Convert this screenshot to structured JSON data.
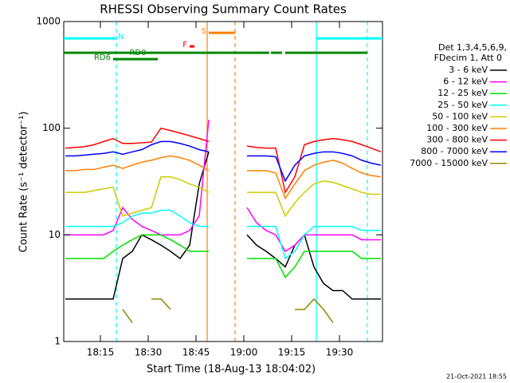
{
  "chart_data": {
    "type": "line",
    "title": "RHESSI Observing Summary Count Rates",
    "xlabel": "Start Time (18-Aug-13 18:04:02)",
    "ylabel": "Count Rate (s⁻¹ detector⁻¹)",
    "footer": "21-Oct-2021 18:55",
    "log_y": true,
    "xlim": [
      "18:03:30",
      "19:43:30"
    ],
    "xticks": [
      "18:15",
      "18:30",
      "18:45",
      "19:00",
      "19:15",
      "19:30"
    ],
    "ylim": [
      1,
      1000
    ],
    "yticks": [
      1,
      10,
      100,
      1000
    ],
    "legend_title": [
      "Det 1,3,4,5,6,9,",
      "FDecim 1, Att 0"
    ],
    "x": [
      "18:04",
      "18:07",
      "18:10",
      "18:13",
      "18:16",
      "18:19",
      "18:22",
      "18:25",
      "18:28",
      "18:31",
      "18:34",
      "18:37",
      "18:40",
      "18:43",
      "18:46",
      "18:49",
      "18:52",
      "18:55",
      "18:58",
      "19:01",
      "19:04",
      "19:07",
      "19:10",
      "19:13",
      "19:16",
      "19:19",
      "19:22",
      "19:25",
      "19:28",
      "19:31",
      "19:34",
      "19:37",
      "19:40",
      "19:43"
    ],
    "series": [
      {
        "name": "3 - 6 keV",
        "color": "#000000",
        "values": [
          2.5,
          2.5,
          2.5,
          2.5,
          2.5,
          2.5,
          6,
          7,
          10,
          9,
          8,
          7,
          6,
          8,
          30,
          60,
          null,
          null,
          null,
          10,
          8,
          7,
          6,
          5,
          8,
          10,
          5,
          3.5,
          3,
          3,
          2.5,
          2.5,
          2.5,
          2.5
        ]
      },
      {
        "name": "6 - 12 keV",
        "color": "#ff00ff",
        "values": [
          10,
          10,
          10,
          10,
          10,
          11,
          18,
          14,
          12,
          11,
          10,
          10,
          10,
          11,
          15,
          120,
          null,
          null,
          null,
          18,
          13,
          11,
          10,
          7,
          8,
          10,
          10,
          10,
          10,
          10,
          10,
          9,
          9,
          9
        ]
      },
      {
        "name": "12 - 25 keV",
        "color": "#00e000",
        "values": [
          6,
          6,
          6,
          6,
          6,
          7,
          8,
          9,
          10,
          10,
          10,
          9,
          8,
          7,
          7,
          7,
          null,
          null,
          null,
          6,
          6,
          6,
          6,
          4,
          5,
          7,
          7,
          7,
          7,
          7,
          7,
          6,
          6,
          6
        ]
      },
      {
        "name": "25 - 50 keV",
        "color": "#00ffff",
        "values": [
          12,
          12,
          12,
          12,
          12,
          12,
          13,
          15,
          16,
          16,
          17,
          17,
          15,
          13,
          12,
          12,
          null,
          null,
          null,
          12,
          12,
          12,
          12,
          6,
          7,
          10,
          12,
          12,
          12,
          12,
          12,
          11,
          11,
          11
        ]
      },
      {
        "name": "50 - 100 keV",
        "color": "#cccc00",
        "values": [
          25,
          25,
          25,
          26,
          27,
          28,
          15,
          16,
          17,
          18,
          35,
          35,
          33,
          30,
          28,
          25,
          null,
          null,
          null,
          25,
          25,
          25,
          25,
          15,
          20,
          25,
          30,
          32,
          31,
          29,
          27,
          25,
          24,
          24
        ]
      },
      {
        "name": "100 - 300 keV",
        "color": "#ff8000",
        "values": [
          40,
          40,
          41,
          41,
          43,
          45,
          42,
          45,
          48,
          50,
          53,
          55,
          53,
          50,
          45,
          40,
          null,
          null,
          null,
          40,
          40,
          40,
          38,
          22,
          30,
          40,
          45,
          48,
          50,
          47,
          42,
          38,
          36,
          35
        ]
      },
      {
        "name": "300 - 800 keV",
        "color": "#ff0000",
        "values": [
          65,
          66,
          67,
          70,
          75,
          80,
          72,
          72,
          73,
          74,
          100,
          95,
          90,
          85,
          80,
          75,
          null,
          null,
          null,
          68,
          66,
          65,
          65,
          25,
          35,
          70,
          75,
          78,
          80,
          78,
          75,
          70,
          65,
          60
        ]
      },
      {
        "name": "800 - 7000 keV",
        "color": "#0000ff",
        "values": [
          55,
          55,
          56,
          57,
          58,
          60,
          57,
          60,
          63,
          70,
          75,
          75,
          72,
          68,
          63,
          60,
          null,
          null,
          null,
          55,
          55,
          55,
          54,
          32,
          45,
          55,
          58,
          60,
          60,
          58,
          55,
          50,
          47,
          45
        ]
      },
      {
        "name": "7000 - 15000 keV",
        "color": "#8b8b00",
        "values": [
          null,
          null,
          null,
          null,
          null,
          null,
          2,
          1.5,
          null,
          2.5,
          2.5,
          2,
          null,
          null,
          null,
          null,
          null,
          null,
          null,
          null,
          null,
          null,
          null,
          null,
          2,
          2,
          2.5,
          2,
          1.5,
          null,
          null,
          null,
          null,
          null
        ]
      }
    ],
    "events": [
      {
        "x": "18:20",
        "color": "#00ffff",
        "dashed": true
      },
      {
        "x": "19:22:45",
        "color": "#00ffff",
        "dashed": false
      },
      {
        "x": "19:38:45",
        "color": "#00ffff",
        "dashed": true
      },
      {
        "x": "18:48:30",
        "color": "#ff8000",
        "dashed": false
      },
      {
        "x": "18:57:15",
        "color": "#ff8000",
        "dashed": true
      }
    ],
    "flags": [
      {
        "label": "N",
        "color": "#00ffff",
        "level": 695,
        "segments": [
          [
            "18:03:30",
            "18:20"
          ],
          [
            "19:22:45",
            "19:43:30"
          ]
        ]
      },
      {
        "label": "S",
        "color": "#ff8000",
        "level": 784,
        "segments": [
          [
            "18:49",
            "18:57:15"
          ]
        ]
      },
      {
        "label": "F",
        "color": "#ff0000",
        "level": 585,
        "segments": [
          [
            "18:43",
            "18:44:30"
          ]
        ]
      },
      {
        "label": "RD0",
        "color": "#008800",
        "level": 510,
        "segments": [
          [
            "18:03:30",
            "19:08"
          ],
          [
            "19:08:30",
            "19:12"
          ],
          [
            "19:13",
            "19:38:45"
          ]
        ]
      },
      {
        "label": "RD6",
        "color": "#008800",
        "level": 444,
        "segments": [
          [
            "18:19",
            "18:33"
          ]
        ]
      }
    ]
  }
}
